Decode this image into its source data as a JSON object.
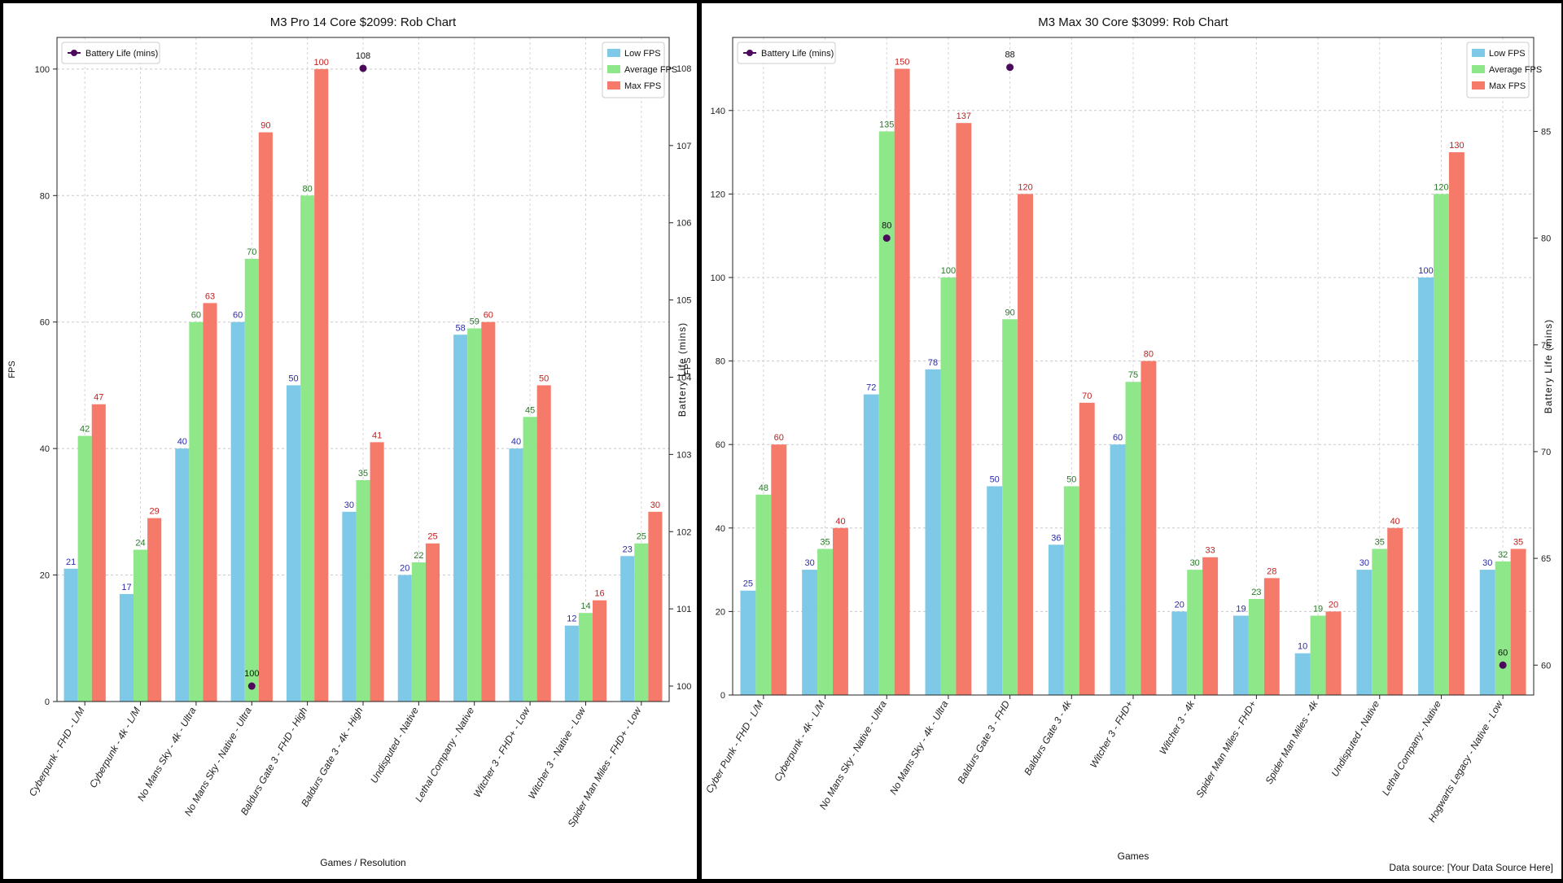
{
  "footer_note": "Data source: [Your Data Source Here]",
  "colors": {
    "low": "#7ec8e8",
    "avg": "#8ee88a",
    "max": "#f57a6a",
    "low_label": "#2b2ba8",
    "avg_label": "#2a7a2a",
    "max_label": "#c02020",
    "battery": "#4b0a5c"
  },
  "chart_data": [
    {
      "type": "bar",
      "title": "M3 Pro 14 Core $2099: Rob Chart",
      "xlabel": "Games / Resolution",
      "ylabel": "FPS",
      "y2label": "Battery Life (mins)",
      "ylim": [
        0,
        105
      ],
      "yticks": [
        0,
        20,
        40,
        60,
        80,
        100
      ],
      "y2lim": [
        99.8,
        108.4
      ],
      "y2ticks": [
        100,
        101,
        102,
        103,
        104,
        105,
        106,
        107,
        108
      ],
      "grid": true,
      "legend_left": "top-left",
      "legend_right": "top-right",
      "categories": [
        "Cyberpunk - FHD - L/M",
        "Cyberpunk - 4k - L/M",
        "No Mans Sky - 4k - Ultra",
        "No Mans Sky - Native - Ultra",
        "Baldurs Gate 3 - FHD - High",
        "Baldurs Gate 3 - 4k - High",
        "Undisputed - Native",
        "Lethal Company - Native",
        "Witcher 3 - FHD+ - Low",
        "Witcher 3 - Native - Low",
        "Spider Man Miles - FHD+ - Low"
      ],
      "series": [
        {
          "name": "Low FPS",
          "values": [
            21,
            17,
            40,
            60,
            50,
            30,
            20,
            58,
            40,
            12,
            23
          ]
        },
        {
          "name": "Average FPS",
          "values": [
            42,
            24,
            60,
            70,
            80,
            35,
            22,
            59,
            45,
            14,
            25
          ]
        },
        {
          "name": "Max FPS",
          "values": [
            47,
            29,
            63,
            90,
            100,
            41,
            25,
            60,
            50,
            16,
            30
          ]
        }
      ],
      "battery_series": {
        "name": "Battery Life (mins)",
        "points": [
          {
            "category": "No Mans Sky - Native - Ultra",
            "value": 100
          },
          {
            "category": "Baldurs Gate 3 - 4k - High",
            "value": 108
          }
        ]
      }
    },
    {
      "type": "bar",
      "title": "M3 Max 30 Core $3099: Rob Chart",
      "xlabel": "Games",
      "ylabel": "FPS",
      "y2label": "Battery Life (mins)",
      "ylim": [
        0,
        157.5
      ],
      "yticks": [
        0,
        20,
        40,
        60,
        80,
        100,
        120,
        140
      ],
      "y2lim": [
        58.6,
        89.4
      ],
      "y2ticks": [
        60,
        65,
        70,
        75,
        80,
        85
      ],
      "grid": true,
      "legend_left": "top-left",
      "legend_right": "top-right",
      "categories": [
        "Cyber Punk - FHD - L/M",
        "Cyberpunk - 4k - L/M",
        "No Mans Sky - Native - Ultra",
        "No Mans Sky - 4k - Ultra",
        "Baldurs Gate 3 - FHD",
        "Baldurs Gate 3 - 4k",
        "Witcher 3 - FHD+",
        "Witcher 3 - 4k",
        "Spider Man Miles - FHD+",
        "Spider Man Miles - 4k",
        "Undisputed - Native",
        "Lethal Company - Native",
        "Hogwarts Legacy - Native - Low"
      ],
      "series": [
        {
          "name": "Low FPS",
          "values": [
            25,
            30,
            72,
            78,
            50,
            36,
            60,
            20,
            19,
            10,
            30,
            100,
            30
          ]
        },
        {
          "name": "Average FPS",
          "values": [
            48,
            35,
            135,
            100,
            90,
            50,
            75,
            30,
            23,
            19,
            35,
            120,
            32
          ]
        },
        {
          "name": "Max FPS",
          "values": [
            60,
            40,
            150,
            137,
            120,
            70,
            80,
            33,
            28,
            20,
            40,
            130,
            35
          ]
        }
      ],
      "battery_series": {
        "name": "Battery Life (mins)",
        "points": [
          {
            "category": "No Mans Sky - Native - Ultra",
            "value": 80
          },
          {
            "category": "Baldurs Gate 3 - FHD",
            "value": 88
          },
          {
            "category": "Hogwarts Legacy - Native - Low",
            "value": 60
          }
        ]
      }
    }
  ]
}
